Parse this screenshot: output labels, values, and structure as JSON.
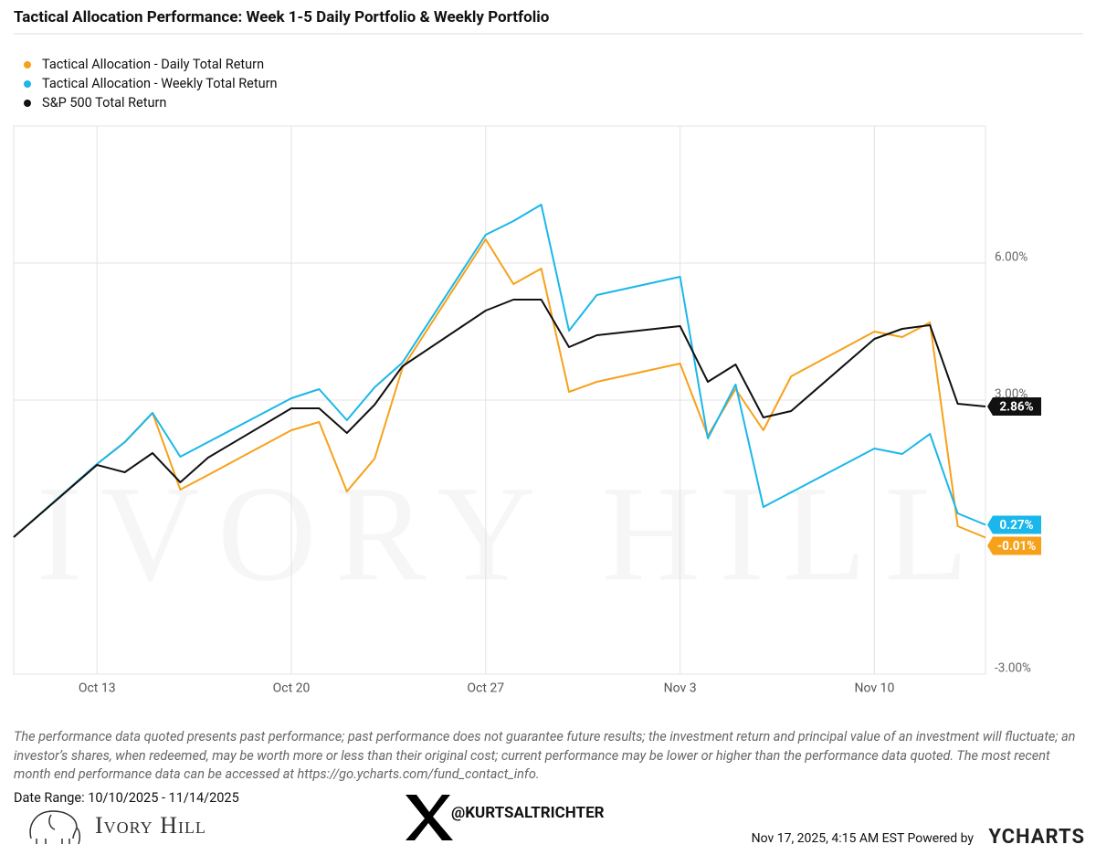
{
  "chart_data": {
    "type": "line",
    "title": "Tactical Allocation Performance: Week 1-5 Daily Portfolio & Weekly Portfolio",
    "watermark": "IVORY HILL",
    "x": [
      "2025-10-10",
      "2025-10-13",
      "2025-10-14",
      "2025-10-15",
      "2025-10-16",
      "2025-10-17",
      "2025-10-20",
      "2025-10-21",
      "2025-10-22",
      "2025-10-23",
      "2025-10-24",
      "2025-10-27",
      "2025-10-28",
      "2025-10-29",
      "2025-10-30",
      "2025-10-31",
      "2025-11-03",
      "2025-11-04",
      "2025-11-05",
      "2025-11-06",
      "2025-11-07",
      "2025-11-10",
      "2025-11-11",
      "2025-11-12",
      "2025-11-13",
      "2025-11-14"
    ],
    "series": [
      {
        "name": "Tactical Allocation - Daily Total Return",
        "color": "#f7a11a",
        "values": [
          0,
          1.6,
          2.08,
          2.72,
          1.04,
          1.36,
          2.34,
          2.52,
          1.0,
          1.72,
          3.7,
          6.52,
          5.54,
          5.88,
          3.18,
          3.4,
          3.8,
          2.22,
          3.24,
          2.34,
          3.52,
          4.5,
          4.38,
          4.7,
          0.24,
          -0.01
        ],
        "last_label": "-0.01%"
      },
      {
        "name": "Tactical Allocation - Weekly Total Return",
        "color": "#1ab7ea",
        "values": [
          0,
          1.6,
          2.08,
          2.72,
          1.76,
          2.08,
          3.04,
          3.24,
          2.56,
          3.28,
          3.82,
          6.62,
          6.92,
          7.28,
          4.52,
          5.3,
          5.7,
          2.16,
          3.34,
          0.66,
          0.98,
          1.94,
          1.82,
          2.26,
          0.52,
          0.27
        ],
        "last_label": "0.27%"
      },
      {
        "name": "S&P 500 Total Return",
        "color": "#111111",
        "values": [
          0,
          1.58,
          1.42,
          1.84,
          1.2,
          1.74,
          2.82,
          2.82,
          2.28,
          2.9,
          3.74,
          4.96,
          5.2,
          5.2,
          4.16,
          4.42,
          4.62,
          3.4,
          3.78,
          2.62,
          2.76,
          4.34,
          4.56,
          4.64,
          2.92,
          2.86
        ],
        "last_label": "2.86%"
      }
    ],
    "xlim": [
      "2025-10-10",
      "2025-11-14"
    ],
    "xticks": [
      {
        "value": "2025-10-13",
        "label": "Oct 13"
      },
      {
        "value": "2025-10-20",
        "label": "Oct 20"
      },
      {
        "value": "2025-10-27",
        "label": "Oct 27"
      },
      {
        "value": "2025-11-03",
        "label": "Nov 3"
      },
      {
        "value": "2025-11-10",
        "label": "Nov 10"
      }
    ],
    "ylim": [
      -3,
      9
    ],
    "yticks": [
      {
        "value": -3,
        "label": "-3.00%"
      },
      {
        "value": 3,
        "label": "3.00%"
      },
      {
        "value": 6,
        "label": "6.00%"
      }
    ],
    "grid": true,
    "legend": "top-left",
    "disclaimer": "The performance data quoted presents past performance; past performance does not guarantee future results; the investment return and principal value of an investment will fluctuate; an investor’s shares, when redeemed, may be worth more or less than their original cost; current performance may be lower or higher than the performance data quoted. The most recent month end performance data can be accessed at https://go.ycharts.com/fund_contact_info.",
    "date_range": "Date Range: 10/10/2025 - 11/14/2025",
    "logo": "Ivory Hill",
    "handle": "@KURTSALTRICHTER",
    "timestamp": "Nov 17, 2025, 4:15 AM EST Powered by",
    "brand": "YCHARTS"
  }
}
